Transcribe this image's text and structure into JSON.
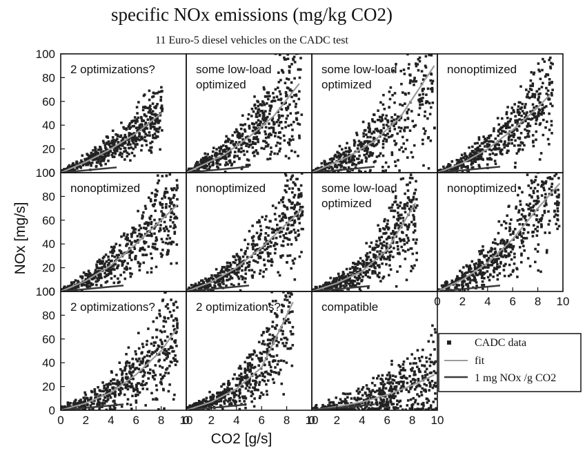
{
  "title": "specific NOx emissions (mg/kg CO2)",
  "subtitle": "11 Euro-5 diesel vehicles on the CADC test",
  "colors": {
    "data": "#222222",
    "fit": "#9a9a9a",
    "ref": "#3a3a3a",
    "frame": "#111111"
  },
  "chart_data": {
    "type": "scatter",
    "layout": "grid 3 rows x 4 columns, 11 panels",
    "xlabel": "CO2 [g/s]",
    "ylabel": "NOx [mg/s]",
    "xlim": [
      0,
      10
    ],
    "ylim": [
      0,
      100
    ],
    "xticks": [
      "0",
      "2",
      "4",
      "6",
      "8",
      "10"
    ],
    "yticks": [
      "0",
      "20",
      "40",
      "60",
      "80",
      "100"
    ],
    "legend": {
      "position": "right, beside bottom row",
      "entries": [
        "CADC data",
        "fit",
        "1 mg NOx /g CO2"
      ]
    },
    "panels": [
      {
        "title": "2 optimizations?",
        "fit": [
          [
            0,
            0
          ],
          [
            2,
            9
          ],
          [
            4,
            20
          ],
          [
            6,
            33
          ],
          [
            8,
            50
          ]
        ],
        "data_extent_x": 8.1,
        "spread": 0.25
      },
      {
        "title": "some low-load\noptimized",
        "fit": [
          [
            0,
            0
          ],
          [
            3,
            15
          ],
          [
            5,
            30
          ],
          [
            7,
            48
          ],
          [
            9,
            75
          ]
        ],
        "data_extent_x": 9.2,
        "spread": 0.35
      },
      {
        "title": "some low-load\noptimized",
        "fit": [
          [
            0,
            0
          ],
          [
            3,
            14
          ],
          [
            5,
            27
          ],
          [
            7,
            46
          ],
          [
            9,
            78
          ]
        ],
        "data_extent_x": 9.8,
        "spread": 0.4
      },
      {
        "title": "nonoptimized",
        "fit": [
          [
            0,
            0
          ],
          [
            2,
            8
          ],
          [
            4,
            20
          ],
          [
            6,
            36
          ],
          [
            8,
            55
          ],
          [
            9,
            66
          ]
        ],
        "data_extent_x": 9.2,
        "spread": 0.3
      },
      {
        "title": "nonoptimized",
        "fit": [
          [
            0,
            0
          ],
          [
            2,
            9
          ],
          [
            4,
            22
          ],
          [
            6,
            40
          ],
          [
            8,
            60
          ],
          [
            9,
            70
          ]
        ],
        "data_extent_x": 9.3,
        "spread": 0.3
      },
      {
        "title": "nonoptimized",
        "fit": [
          [
            0,
            0
          ],
          [
            2,
            8
          ],
          [
            4,
            20
          ],
          [
            6,
            37
          ],
          [
            8,
            57
          ],
          [
            9,
            67
          ]
        ],
        "data_extent_x": 9.3,
        "spread": 0.3
      },
      {
        "title": "some low-load\noptimized",
        "fit": [
          [
            0,
            0
          ],
          [
            2,
            7
          ],
          [
            4,
            17
          ],
          [
            6,
            35
          ],
          [
            8,
            70
          ]
        ],
        "data_extent_x": 8.4,
        "spread": 0.35
      },
      {
        "title": "nonoptimized",
        "fit": [
          [
            0,
            0
          ],
          [
            2,
            10
          ],
          [
            4,
            24
          ],
          [
            6,
            44
          ],
          [
            8,
            70
          ],
          [
            9,
            82
          ]
        ],
        "data_extent_x": 9.8,
        "spread": 0.3
      },
      {
        "title": "2 optimizations?",
        "fit": [
          [
            0,
            0
          ],
          [
            2,
            6
          ],
          [
            4,
            15
          ],
          [
            6,
            30
          ],
          [
            8,
            50
          ],
          [
            9,
            65
          ]
        ],
        "data_extent_x": 9.3,
        "spread": 0.4
      },
      {
        "title": "2 optimizations?",
        "fit": [
          [
            0,
            0
          ],
          [
            2,
            7
          ],
          [
            4,
            18
          ],
          [
            6,
            36
          ],
          [
            8,
            80
          ]
        ],
        "data_extent_x": 8.5,
        "spread": 0.35
      },
      {
        "title": "compatible",
        "fit": [
          [
            0,
            0
          ],
          [
            2,
            3
          ],
          [
            4,
            7
          ],
          [
            6,
            13
          ],
          [
            8,
            21
          ],
          [
            10,
            31
          ]
        ],
        "data_extent_x": 9.9,
        "spread": 0.6
      }
    ]
  }
}
